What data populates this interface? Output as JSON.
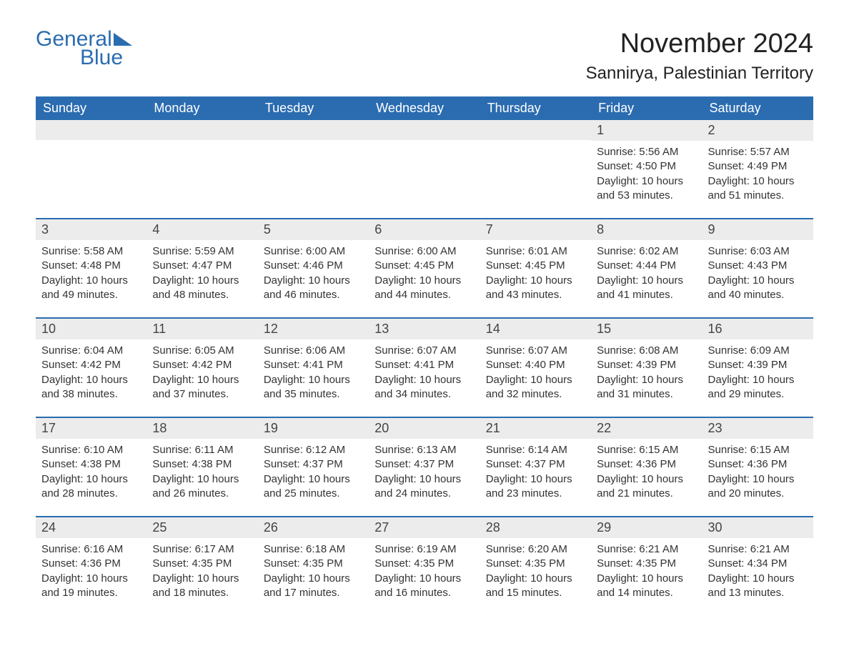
{
  "logo": {
    "text1": "General",
    "text2": "Blue"
  },
  "title": "November 2024",
  "location": "Sannirya, Palestinian Territory",
  "colors": {
    "brand": "#2b6cb0",
    "header_bg": "#2b6cb0",
    "header_text": "#ffffff",
    "daynum_bg": "#ececec",
    "text": "#333333",
    "background": "#ffffff",
    "row_separator": "#2b6cb0"
  },
  "typography": {
    "font_family": "Arial",
    "title_fontsize": 38,
    "location_fontsize": 24,
    "header_fontsize": 18,
    "daynum_fontsize": 18,
    "body_fontsize": 15
  },
  "layout": {
    "columns": 7,
    "rows": 5,
    "cell_min_height": 108
  },
  "labels": {
    "sunrise": "Sunrise: ",
    "sunset": "Sunset: ",
    "daylight_prefix": "Daylight: ",
    "daylight_suffix": "."
  },
  "dayHeaders": [
    "Sunday",
    "Monday",
    "Tuesday",
    "Wednesday",
    "Thursday",
    "Friday",
    "Saturday"
  ],
  "weeks": [
    [
      null,
      null,
      null,
      null,
      null,
      {
        "n": "1",
        "sr": "5:56 AM",
        "ss": "4:50 PM",
        "dl": "10 hours and 53 minutes"
      },
      {
        "n": "2",
        "sr": "5:57 AM",
        "ss": "4:49 PM",
        "dl": "10 hours and 51 minutes"
      }
    ],
    [
      {
        "n": "3",
        "sr": "5:58 AM",
        "ss": "4:48 PM",
        "dl": "10 hours and 49 minutes"
      },
      {
        "n": "4",
        "sr": "5:59 AM",
        "ss": "4:47 PM",
        "dl": "10 hours and 48 minutes"
      },
      {
        "n": "5",
        "sr": "6:00 AM",
        "ss": "4:46 PM",
        "dl": "10 hours and 46 minutes"
      },
      {
        "n": "6",
        "sr": "6:00 AM",
        "ss": "4:45 PM",
        "dl": "10 hours and 44 minutes"
      },
      {
        "n": "7",
        "sr": "6:01 AM",
        "ss": "4:45 PM",
        "dl": "10 hours and 43 minutes"
      },
      {
        "n": "8",
        "sr": "6:02 AM",
        "ss": "4:44 PM",
        "dl": "10 hours and 41 minutes"
      },
      {
        "n": "9",
        "sr": "6:03 AM",
        "ss": "4:43 PM",
        "dl": "10 hours and 40 minutes"
      }
    ],
    [
      {
        "n": "10",
        "sr": "6:04 AM",
        "ss": "4:42 PM",
        "dl": "10 hours and 38 minutes"
      },
      {
        "n": "11",
        "sr": "6:05 AM",
        "ss": "4:42 PM",
        "dl": "10 hours and 37 minutes"
      },
      {
        "n": "12",
        "sr": "6:06 AM",
        "ss": "4:41 PM",
        "dl": "10 hours and 35 minutes"
      },
      {
        "n": "13",
        "sr": "6:07 AM",
        "ss": "4:41 PM",
        "dl": "10 hours and 34 minutes"
      },
      {
        "n": "14",
        "sr": "6:07 AM",
        "ss": "4:40 PM",
        "dl": "10 hours and 32 minutes"
      },
      {
        "n": "15",
        "sr": "6:08 AM",
        "ss": "4:39 PM",
        "dl": "10 hours and 31 minutes"
      },
      {
        "n": "16",
        "sr": "6:09 AM",
        "ss": "4:39 PM",
        "dl": "10 hours and 29 minutes"
      }
    ],
    [
      {
        "n": "17",
        "sr": "6:10 AM",
        "ss": "4:38 PM",
        "dl": "10 hours and 28 minutes"
      },
      {
        "n": "18",
        "sr": "6:11 AM",
        "ss": "4:38 PM",
        "dl": "10 hours and 26 minutes"
      },
      {
        "n": "19",
        "sr": "6:12 AM",
        "ss": "4:37 PM",
        "dl": "10 hours and 25 minutes"
      },
      {
        "n": "20",
        "sr": "6:13 AM",
        "ss": "4:37 PM",
        "dl": "10 hours and 24 minutes"
      },
      {
        "n": "21",
        "sr": "6:14 AM",
        "ss": "4:37 PM",
        "dl": "10 hours and 23 minutes"
      },
      {
        "n": "22",
        "sr": "6:15 AM",
        "ss": "4:36 PM",
        "dl": "10 hours and 21 minutes"
      },
      {
        "n": "23",
        "sr": "6:15 AM",
        "ss": "4:36 PM",
        "dl": "10 hours and 20 minutes"
      }
    ],
    [
      {
        "n": "24",
        "sr": "6:16 AM",
        "ss": "4:36 PM",
        "dl": "10 hours and 19 minutes"
      },
      {
        "n": "25",
        "sr": "6:17 AM",
        "ss": "4:35 PM",
        "dl": "10 hours and 18 minutes"
      },
      {
        "n": "26",
        "sr": "6:18 AM",
        "ss": "4:35 PM",
        "dl": "10 hours and 17 minutes"
      },
      {
        "n": "27",
        "sr": "6:19 AM",
        "ss": "4:35 PM",
        "dl": "10 hours and 16 minutes"
      },
      {
        "n": "28",
        "sr": "6:20 AM",
        "ss": "4:35 PM",
        "dl": "10 hours and 15 minutes"
      },
      {
        "n": "29",
        "sr": "6:21 AM",
        "ss": "4:35 PM",
        "dl": "10 hours and 14 minutes"
      },
      {
        "n": "30",
        "sr": "6:21 AM",
        "ss": "4:34 PM",
        "dl": "10 hours and 13 minutes"
      }
    ]
  ]
}
